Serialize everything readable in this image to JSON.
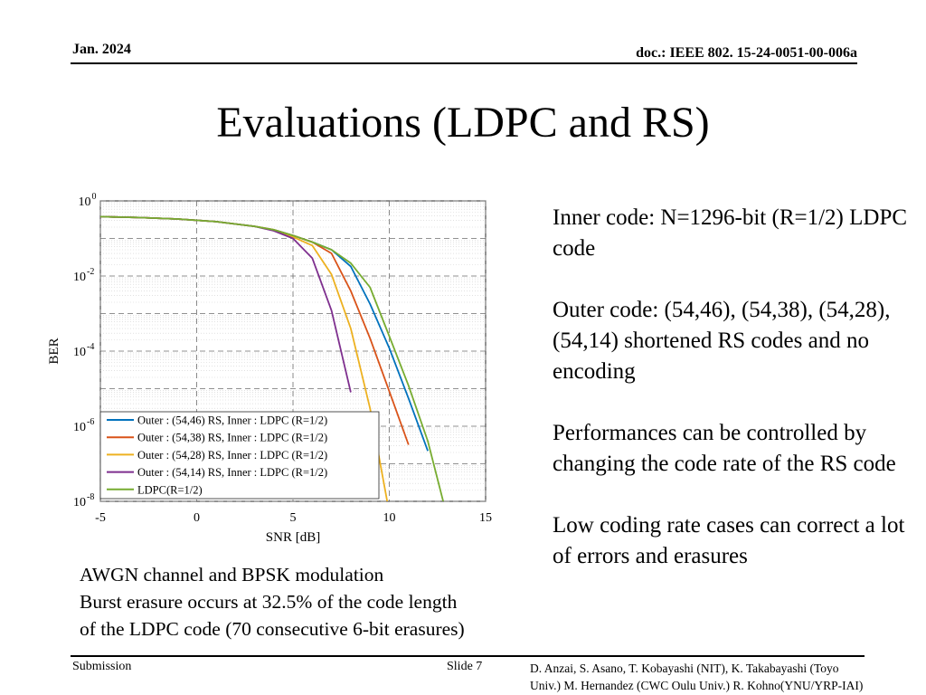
{
  "header": {
    "date": "Jan. 2024",
    "doc": "doc.: IEEE 802. 15-24-0051-00-006a"
  },
  "slide": {
    "title": "Evaluations (LDPC and RS)",
    "bullets": [
      "Inner code: N=1296-bit (R=1/2) LDPC code",
      "Outer code: (54,46), (54,38), (54,28), (54,14) shortened RS codes and no encoding",
      "Performances can be controlled by changing the code rate of the RS code",
      "Low coding rate cases can correct a lot of errors and erasures"
    ],
    "note_lines": [
      "AWGN channel and BPSK modulation",
      "Burst erasure occurs at 32.5% of the code length",
      "of the LDPC code (70 consecutive 6-bit erasures)"
    ]
  },
  "footer": {
    "left": "Submission",
    "slide_number": "Slide 7",
    "authors_line1": "D. Anzai, S. Asano,  T. Kobayashi (NIT), K. Takabayashi (Toyo",
    "authors_line2": "Univ.) M. Hernandez (CWC Oulu Univ.) R. Kohno(YNU/YRP-IAI)"
  },
  "chart_data": {
    "type": "line",
    "xlabel": "SNR [dB]",
    "ylabel": "BER",
    "xlim": [
      -5,
      15
    ],
    "ylim_log10": [
      -8,
      0
    ],
    "yscale": "log",
    "grid": true,
    "legend_position": "bottom-left",
    "x_ticks": [
      "-5",
      "0",
      "5",
      "10",
      "15"
    ],
    "y_tick_exponents": [
      "0",
      "-2",
      "-4",
      "-6",
      "-8"
    ],
    "series": [
      {
        "name": "Outer : (54,46) RS, Inner : LDPC (R=1/2)",
        "color": "#0072BD",
        "points": [
          [
            -5,
            0.38
          ],
          [
            -3,
            0.36
          ],
          [
            -1,
            0.33
          ],
          [
            1,
            0.28
          ],
          [
            3,
            0.21
          ],
          [
            4,
            0.17
          ],
          [
            5,
            0.12
          ],
          [
            6,
            0.08
          ],
          [
            7,
            0.05
          ],
          [
            8,
            0.018
          ],
          [
            9,
            0.0018
          ],
          [
            10,
            0.00012
          ],
          [
            11,
            5.5e-06
          ],
          [
            12,
            2.2e-07
          ]
        ]
      },
      {
        "name": "Outer : (54,38) RS, Inner : LDPC (R=1/2)",
        "color": "#D95319",
        "points": [
          [
            -5,
            0.38
          ],
          [
            -3,
            0.36
          ],
          [
            -1,
            0.33
          ],
          [
            1,
            0.28
          ],
          [
            3,
            0.21
          ],
          [
            4,
            0.17
          ],
          [
            5,
            0.12
          ],
          [
            6,
            0.08
          ],
          [
            7,
            0.04
          ],
          [
            8,
            0.004
          ],
          [
            9,
            0.00022
          ],
          [
            10,
            8.5e-06
          ],
          [
            11,
            3.2e-07
          ]
        ]
      },
      {
        "name": "Outer : (54,28) RS, Inner : LDPC (R=1/2)",
        "color": "#EDB120",
        "points": [
          [
            -5,
            0.38
          ],
          [
            -3,
            0.36
          ],
          [
            -1,
            0.33
          ],
          [
            1,
            0.28
          ],
          [
            3,
            0.21
          ],
          [
            4,
            0.17
          ],
          [
            5,
            0.11
          ],
          [
            6,
            0.065
          ],
          [
            7,
            0.011
          ],
          [
            8,
            0.0004
          ],
          [
            9,
            3e-06
          ],
          [
            10,
            5e-09
          ]
        ]
      },
      {
        "name": "Outer : (54,14) RS, Inner : LDPC (R=1/2)",
        "color": "#7E2F8E",
        "points": [
          [
            -5,
            0.38
          ],
          [
            -3,
            0.36
          ],
          [
            -1,
            0.33
          ],
          [
            1,
            0.28
          ],
          [
            3,
            0.21
          ],
          [
            4,
            0.16
          ],
          [
            5,
            0.1
          ],
          [
            6,
            0.03
          ],
          [
            7,
            0.0012
          ],
          [
            8,
            8e-06
          ]
        ]
      },
      {
        "name": "LDPC(R=1/2)",
        "color": "#77AC30",
        "points": [
          [
            -5,
            0.38
          ],
          [
            -3,
            0.36
          ],
          [
            -1,
            0.33
          ],
          [
            1,
            0.28
          ],
          [
            3,
            0.21
          ],
          [
            4,
            0.17
          ],
          [
            5,
            0.12
          ],
          [
            6,
            0.08
          ],
          [
            7,
            0.05
          ],
          [
            8,
            0.022
          ],
          [
            9,
            0.005
          ],
          [
            10,
            0.00025
          ],
          [
            11,
            1.2e-05
          ],
          [
            12,
            4e-07
          ],
          [
            12.8,
            1e-08
          ]
        ]
      }
    ]
  }
}
